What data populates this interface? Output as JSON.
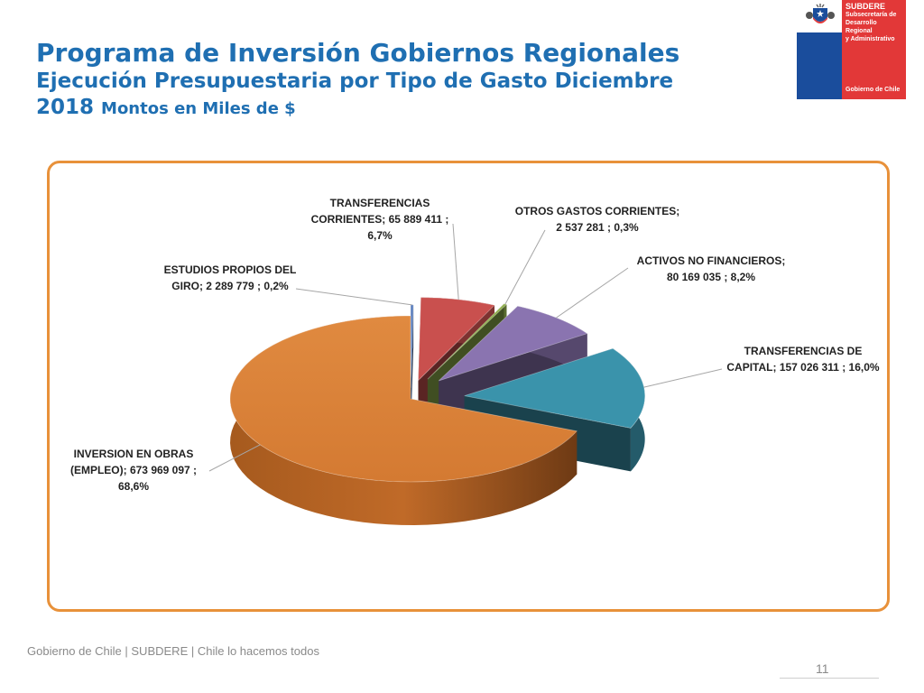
{
  "title": {
    "line1": "Programa de Inversión Gobiernos Regionales",
    "line2": "Ejecución Presupuestaria por Tipo de Gasto Diciembre",
    "line3_main": "2018",
    "line3_small": "Montos en Miles de $"
  },
  "logo": {
    "brand_line1": "SUBDERE",
    "brand_line2": "Subsecretaría de",
    "brand_line3": "Desarrollo Regional",
    "brand_line4": "y Administrativo",
    "footer_text": "Gobierno de Chile",
    "colors": {
      "blue": "#1a4d9c",
      "red": "#e23838"
    }
  },
  "footer": {
    "text": "Gobierno de Chile | SUBDERE | Chile lo hacemos todos",
    "page": "11"
  },
  "chart_data": {
    "type": "pie",
    "style": "3d-exploded",
    "series": [
      {
        "category": "INVERSION EN OBRAS (EMPLEO)",
        "value": 673969097,
        "percent": 68.6,
        "color": "#d9803a",
        "label_lines": [
          "INVERSION EN OBRAS",
          "(EMPLEO);  673 969 097 ;",
          "68,6%"
        ]
      },
      {
        "category": "ESTUDIOS PROPIOS DEL GIRO",
        "value": 2289779,
        "percent": 0.2,
        "color": "#5b7fbf",
        "label_lines": [
          "ESTUDIOS PROPIOS DEL",
          "GIRO;  2 289 779 ; 0,2%"
        ]
      },
      {
        "category": "TRANSFERENCIAS CORRIENTES",
        "value": 65889411,
        "percent": 6.7,
        "color": "#c9504e",
        "label_lines": [
          "TRANSFERENCIAS",
          "CORRIENTES;  65 889 411 ;",
          "6,7%"
        ]
      },
      {
        "category": "OTROS GASTOS CORRIENTES",
        "value": 2537281,
        "percent": 0.3,
        "color": "#8fae4c",
        "label_lines": [
          "OTROS GASTOS CORRIENTES;",
          "2 537 281 ; 0,3%"
        ]
      },
      {
        "category": "ACTIVOS NO FINANCIEROS",
        "value": 80169035,
        "percent": 8.2,
        "color": "#8a74b0",
        "label_lines": [
          "ACTIVOS NO FINANCIEROS;",
          "80 169 035 ; 8,2%"
        ]
      },
      {
        "category": "TRANSFERENCIAS DE CAPITAL",
        "value": 157026311,
        "percent": 16.0,
        "color": "#3a93ab",
        "label_lines": [
          "TRANSFERENCIAS DE",
          "CAPITAL;  157 026 311 ; 16,0%"
        ]
      }
    ],
    "frame_color": "#e8913a"
  }
}
